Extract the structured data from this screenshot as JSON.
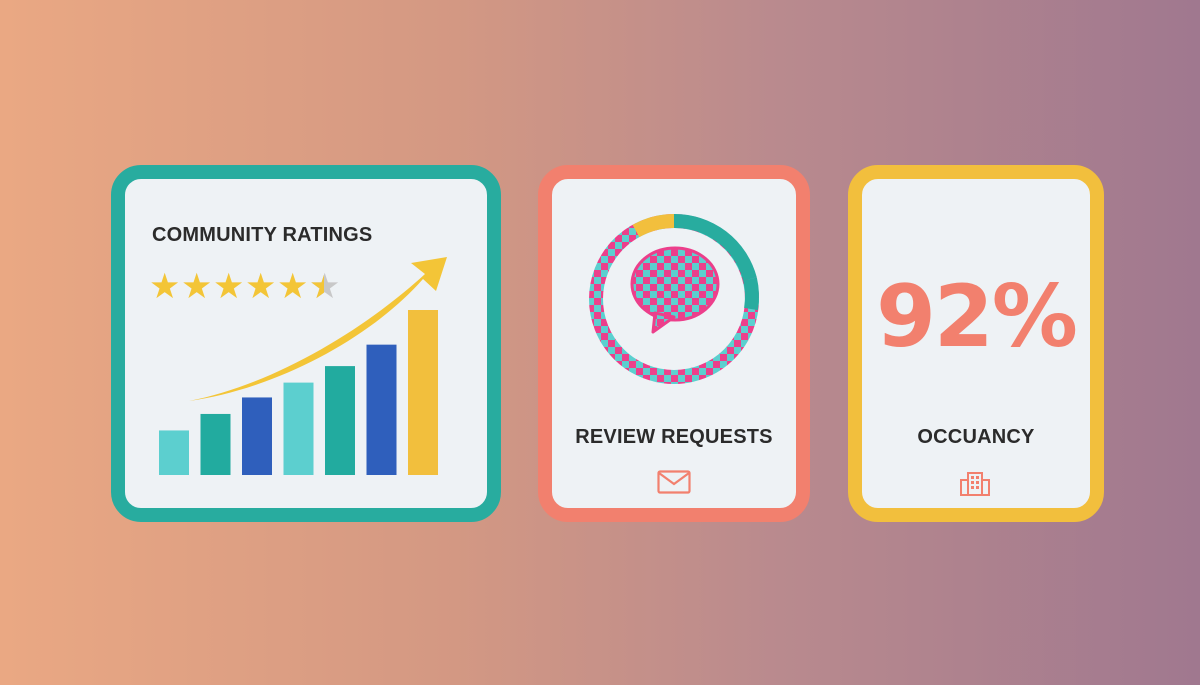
{
  "cards": {
    "ratings": {
      "title": "COMMUNITY RATINGS",
      "rating": 5.5,
      "star_count": 6,
      "icon": "trend-up-arrow-icon",
      "bar_heights_relative": [
        0.27,
        0.37,
        0.47,
        0.56,
        0.66,
        0.79,
        1.0
      ],
      "bar_colors": [
        "#5ccfcf",
        "#22ab9f",
        "#2f5fbc",
        "#5ccfcf",
        "#22ab9f",
        "#2f5fbc",
        "#f2bf3d"
      ]
    },
    "reviews": {
      "title": "REVIEW REQUESTS",
      "icon": "chat-bubble-icon",
      "footer_icon": "envelope-icon"
    },
    "occupancy": {
      "value": "92%",
      "title": "OCCUANCY",
      "footer_icon": "building-icon"
    }
  },
  "colors": {
    "teal": "#28ac9f",
    "coral": "#f2806e",
    "gold": "#f2bf3d",
    "blue": "#2f5fbc",
    "pink": "#ec3f8b",
    "card_bg": "#eef2f5"
  }
}
